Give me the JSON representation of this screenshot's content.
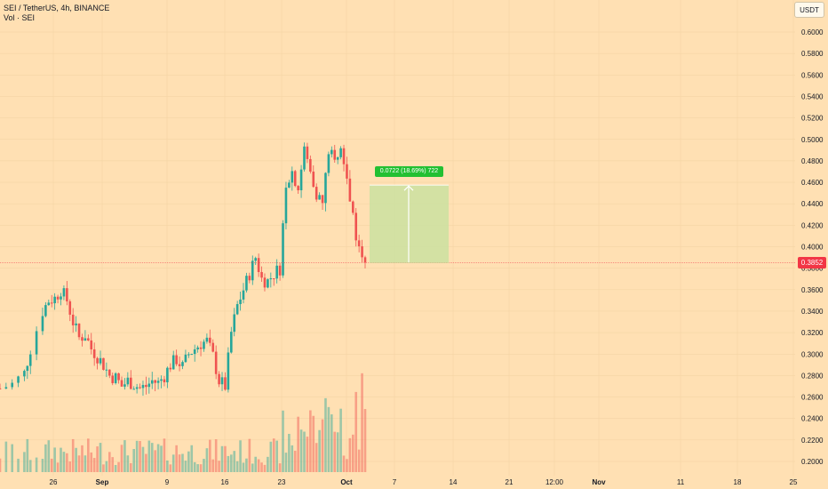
{
  "header": {
    "symbol_line": "SEI / TetherUS, 4h, BINANCE",
    "volume_line": "Vol · SEI"
  },
  "currency_button": "USDT",
  "last_price": "0.3852",
  "projection_label": "0.0722 (18.69%) 722",
  "colors": {
    "background": "#ffe0b3",
    "up": "#26a69a",
    "down": "#ef5350",
    "projection_fill": "#cbe0a0",
    "projection_badge": "#22c032",
    "price_line": "#f23645"
  },
  "chart_data": {
    "type": "candlestick",
    "ylim": [
      0.19,
      0.615
    ],
    "y_ticks": [
      "0.6000",
      "0.5800",
      "0.5600",
      "0.5400",
      "0.5200",
      "0.5000",
      "0.4800",
      "0.4600",
      "0.4400",
      "0.4200",
      "0.4000",
      "0.3800",
      "0.3600",
      "0.3400",
      "0.3200",
      "0.3000",
      "0.2800",
      "0.2600",
      "0.2400",
      "0.2200",
      "0.2000"
    ],
    "x_ticks": [
      {
        "label": "26",
        "bold": false
      },
      {
        "label": "Sep",
        "bold": true
      },
      {
        "label": "9",
        "bold": false
      },
      {
        "label": "16",
        "bold": false
      },
      {
        "label": "23",
        "bold": false
      },
      {
        "label": "Oct",
        "bold": true
      },
      {
        "label": "7",
        "bold": false
      },
      {
        "label": "14",
        "bold": false
      },
      {
        "label": "21",
        "bold": false
      },
      {
        "label": "12:00",
        "bold": false
      },
      {
        "label": "Nov",
        "bold": true
      },
      {
        "label": "11",
        "bold": false
      },
      {
        "label": "18",
        "bold": false
      },
      {
        "label": "25",
        "bold": false
      }
    ],
    "close_path": [
      {
        "d": 0,
        "c": 0.268
      },
      {
        "d": 2,
        "c": 0.272
      },
      {
        "d": 4,
        "c": 0.282
      },
      {
        "d": 5,
        "c": 0.305
      },
      {
        "d": 7,
        "c": 0.34
      },
      {
        "d": 8,
        "c": 0.35
      },
      {
        "d": 9,
        "c": 0.352
      },
      {
        "d": 10,
        "c": 0.36
      },
      {
        "d": 11,
        "c": 0.35
      },
      {
        "d": 12,
        "c": 0.33
      },
      {
        "d": 13,
        "c": 0.315
      },
      {
        "d": 14,
        "c": 0.318
      },
      {
        "d": 15,
        "c": 0.305
      },
      {
        "d": 16,
        "c": 0.298
      },
      {
        "d": 17,
        "c": 0.29
      },
      {
        "d": 18,
        "c": 0.28
      },
      {
        "d": 19,
        "c": 0.278
      },
      {
        "d": 20,
        "c": 0.27
      },
      {
        "d": 21,
        "c": 0.275
      },
      {
        "d": 22,
        "c": 0.272
      },
      {
        "d": 23,
        "c": 0.268
      },
      {
        "d": 24,
        "c": 0.27
      },
      {
        "d": 25,
        "c": 0.275
      },
      {
        "d": 26,
        "c": 0.273
      },
      {
        "d": 27,
        "c": 0.28
      },
      {
        "d": 28,
        "c": 0.29
      },
      {
        "d": 29,
        "c": 0.295
      },
      {
        "d": 30,
        "c": 0.288
      },
      {
        "d": 31,
        "c": 0.3
      },
      {
        "d": 32,
        "c": 0.305
      },
      {
        "d": 33,
        "c": 0.31
      },
      {
        "d": 34,
        "c": 0.312
      },
      {
        "d": 35,
        "c": 0.298
      },
      {
        "d": 36,
        "c": 0.275
      },
      {
        "d": 37,
        "c": 0.27
      },
      {
        "d": 38,
        "c": 0.32
      },
      {
        "d": 39,
        "c": 0.345
      },
      {
        "d": 40,
        "c": 0.36
      },
      {
        "d": 41,
        "c": 0.375
      },
      {
        "d": 42,
        "c": 0.39
      },
      {
        "d": 43,
        "c": 0.37
      },
      {
        "d": 44,
        "c": 0.368
      },
      {
        "d": 45,
        "c": 0.375
      },
      {
        "d": 46,
        "c": 0.38
      },
      {
        "d": 47,
        "c": 0.46
      },
      {
        "d": 48,
        "c": 0.47
      },
      {
        "d": 49,
        "c": 0.455
      },
      {
        "d": 50,
        "c": 0.49
      },
      {
        "d": 51,
        "c": 0.47
      },
      {
        "d": 52,
        "c": 0.45
      },
      {
        "d": 53,
        "c": 0.44
      },
      {
        "d": 54,
        "c": 0.49
      },
      {
        "d": 55,
        "c": 0.48
      },
      {
        "d": 56,
        "c": 0.49
      },
      {
        "d": 57,
        "c": 0.46
      },
      {
        "d": 58,
        "c": 0.43
      },
      {
        "d": 59,
        "c": 0.395
      },
      {
        "d": 60,
        "c": 0.3852
      }
    ],
    "projection": {
      "from": 0.3852,
      "to": 0.4574,
      "change": "0.0722",
      "percent": "18.69%"
    }
  }
}
